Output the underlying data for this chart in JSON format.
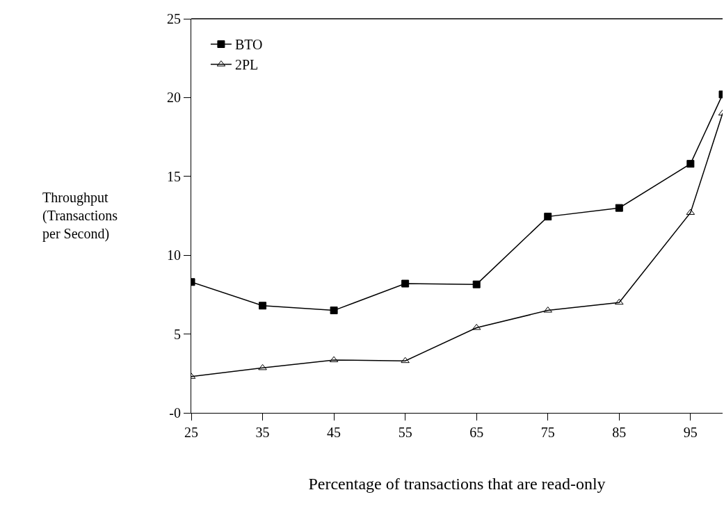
{
  "chart_data": {
    "type": "line",
    "xlabel": "Percentage of transactions that are read-only",
    "ylabel": "Throughput\n(Transactions\nper Second)",
    "x": [
      25,
      35,
      45,
      55,
      65,
      75,
      85,
      95,
      99.5
    ],
    "series": [
      {
        "name": "BTO",
        "color": "#000000",
        "marker": "square",
        "values": [
          8.3,
          6.8,
          6.5,
          8.2,
          8.15,
          12.45,
          13.0,
          15.8,
          20.2
        ]
      },
      {
        "name": "2PL",
        "color": "#000000",
        "marker": "triangle",
        "values": [
          2.3,
          2.85,
          3.35,
          3.3,
          5.4,
          6.5,
          7.0,
          12.7,
          19.0
        ]
      }
    ],
    "xlim": [
      25,
      99.5
    ],
    "xticks": [
      25,
      35,
      45,
      55,
      65,
      75,
      85,
      95
    ],
    "ylim": [
      0,
      25
    ],
    "yticks": [
      {
        "value": 0,
        "label": "-0"
      },
      5,
      10,
      15,
      20,
      25
    ],
    "legend": "top left",
    "line_style": "solid"
  }
}
